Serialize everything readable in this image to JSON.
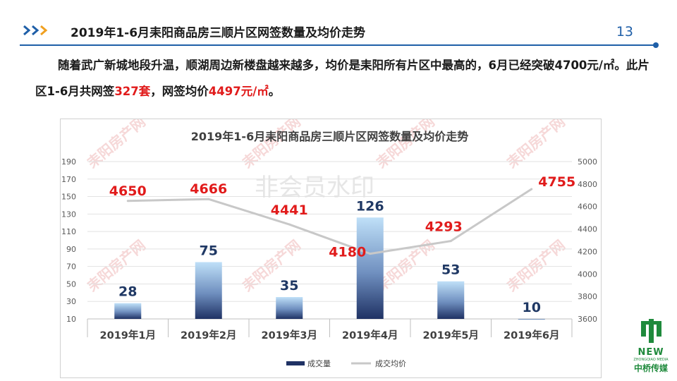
{
  "header": {
    "title": "2019年1-6月耒阳商品房三顺片区网签数量及均价走势",
    "page_number": "13"
  },
  "paragraph": {
    "part1": "随着武广新城地段升温，顺湖周边新楼盘越来越多，均价是耒阳所有片区中最高的，6月已经突破4700元/㎡。此片区1-6月共网签",
    "count": "327套",
    "part2": "，网签均价",
    "avg": "4497元/㎡",
    "part3": "。"
  },
  "watermark": {
    "text": "非会员水印",
    "brand": "耒阳房产网"
  },
  "logo": {
    "new": "NEW",
    "sub": "ZHONGQIAO MEDIA",
    "cn": "中桥传媒"
  },
  "colors": {
    "accent": "#1f5fa8",
    "price_label": "#e11b1b",
    "count_label": "#1f3864",
    "price_line": "#c8c8c8"
  },
  "chart_data": {
    "type": "bar+line",
    "title": "2019年1-6月耒阳商品房三顺片区网签数量及均价走势",
    "categories": [
      "2019年1月",
      "2019年2月",
      "2019年3月",
      "2019年4月",
      "2019年5月",
      "2019年6月"
    ],
    "series": [
      {
        "name": "成交量",
        "type": "bar",
        "axis": "left",
        "values": [
          28,
          75,
          35,
          126,
          53,
          10
        ]
      },
      {
        "name": "成交均价",
        "type": "line",
        "axis": "right",
        "values": [
          4650,
          4666,
          4441,
          4180,
          4293,
          4755
        ]
      }
    ],
    "y_left": {
      "min": 10,
      "max": 190,
      "ticks": [
        "10",
        "30",
        "50",
        "70",
        "90",
        "110",
        "130",
        "150",
        "170",
        "190"
      ]
    },
    "y_right": {
      "min": 3600,
      "max": 5000,
      "ticks": [
        "3600",
        "3800",
        "4000",
        "4200",
        "4400",
        "4600",
        "4800",
        "5000"
      ]
    },
    "gridlines": true,
    "legend_position": "bottom"
  }
}
